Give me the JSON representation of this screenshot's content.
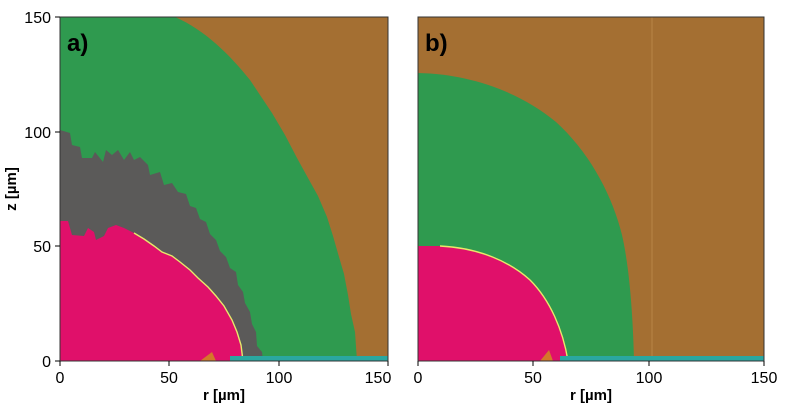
{
  "figure": {
    "panels": [
      {
        "label": "a)",
        "x_ticks": [
          "0",
          "50",
          "100",
          "150"
        ],
        "y_ticks": [
          "0",
          "50",
          "100",
          "150"
        ],
        "x_axis_label": "r [µm]",
        "y_axis_label": "z [µm]",
        "x_range": [
          0,
          150
        ],
        "y_range": [
          0,
          150
        ]
      },
      {
        "label": "b)",
        "x_ticks": [
          "0",
          "50",
          "100",
          "150"
        ],
        "x_axis_label": "r [µm]",
        "x_range": [
          0,
          150
        ],
        "y_range": [
          0,
          150
        ]
      }
    ],
    "colors": {
      "background_region": "#a46f32",
      "green_region": "#2f9a4f",
      "gray_region": "#5b5a59",
      "pink_region": "#e0106a",
      "boundary_line": "#e8e86a"
    }
  }
}
